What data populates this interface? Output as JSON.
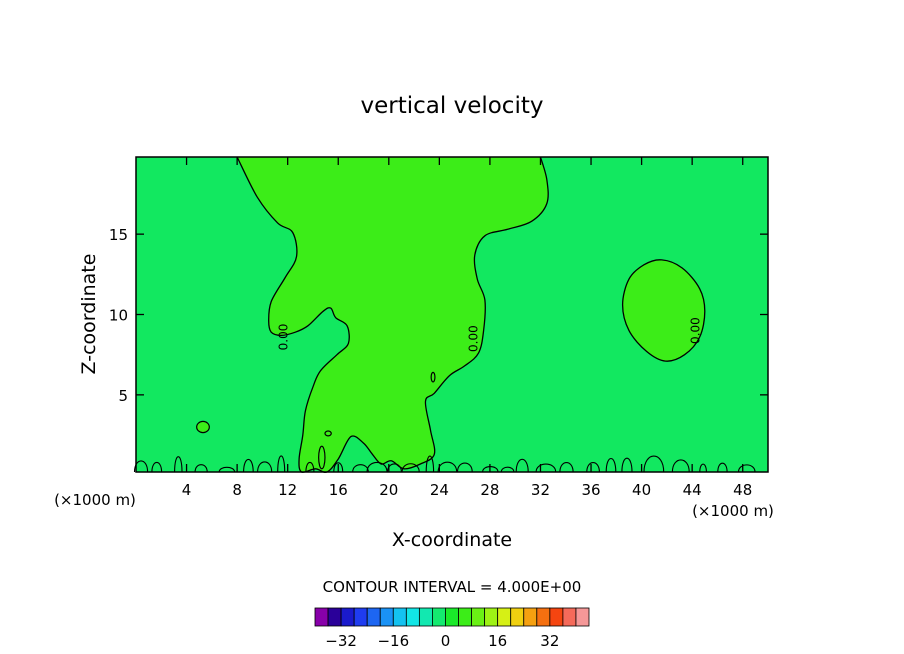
{
  "chart_data": {
    "type": "contour",
    "title": "vertical velocity",
    "xlabel": "X-coordinate",
    "ylabel": "Z-coordinate",
    "x_unit_left": "(×1000 m)",
    "x_unit_right": "(×1000 m)",
    "xlim": [
      0,
      50
    ],
    "ylim": [
      0.2,
      19.8
    ],
    "x_ticks": [
      4,
      8,
      12,
      16,
      20,
      24,
      28,
      32,
      36,
      40,
      44,
      48
    ],
    "y_ticks": [
      5,
      10,
      15
    ],
    "contour_interval_label": "CONTOUR INTERVAL = 4.000E+00",
    "contour_interval": 4.0,
    "contour_labels": [
      {
        "text": "0.00",
        "x": 12.0,
        "z": 8.6
      },
      {
        "text": "0.00",
        "x": 27.0,
        "z": 8.5
      },
      {
        "text": "0.00",
        "x": 44.6,
        "z": 9.0
      }
    ],
    "colorbar": {
      "colors": [
        "#8800aa",
        "#2a0099",
        "#1a1acc",
        "#1f3cf0",
        "#1d66f2",
        "#1a92f5",
        "#14c2f0",
        "#12e6e6",
        "#12e8b0",
        "#14ea70",
        "#1aea2a",
        "#3ced18",
        "#6af015",
        "#9ef215",
        "#d6f015",
        "#f0d010",
        "#f5a010",
        "#f57010",
        "#f54510",
        "#f56a5a",
        "#f59898"
      ],
      "tick_labels": [
        "-32",
        "-16",
        "0",
        "16",
        "32"
      ],
      "tick_values": [
        -32,
        -16,
        0,
        16,
        32
      ],
      "range": [
        -40,
        44
      ]
    },
    "field_colors": {
      "background": "#12e860",
      "updraft_region": "#3ced18"
    },
    "regions": {
      "updraft_column": [
        [
          8.0,
          19.8
        ],
        [
          9.6,
          17.3
        ],
        [
          11.2,
          15.7
        ],
        [
          12.4,
          15.1
        ],
        [
          12.7,
          13.6
        ],
        [
          11.8,
          12.3
        ],
        [
          10.7,
          10.8
        ],
        [
          10.5,
          9.6
        ],
        [
          10.7,
          8.9
        ],
        [
          11.5,
          8.7
        ],
        [
          12.6,
          8.9
        ],
        [
          13.6,
          9.3
        ],
        [
          14.8,
          10.2
        ],
        [
          15.4,
          10.4
        ],
        [
          15.8,
          9.8
        ],
        [
          16.7,
          9.3
        ],
        [
          16.8,
          8.2
        ],
        [
          15.9,
          7.5
        ],
        [
          14.6,
          6.5
        ],
        [
          14.0,
          5.5
        ],
        [
          13.4,
          4.0
        ],
        [
          13.2,
          2.5
        ],
        [
          12.9,
          1.0
        ],
        [
          13.1,
          0.2
        ],
        [
          14.2,
          0.4
        ],
        [
          15.1,
          0.2
        ],
        [
          16.0,
          1.0
        ],
        [
          17.0,
          2.4
        ],
        [
          18.0,
          2.0
        ],
        [
          18.7,
          1.3
        ],
        [
          19.4,
          0.7
        ],
        [
          20.2,
          0.9
        ],
        [
          21.2,
          0.4
        ],
        [
          22.5,
          0.7
        ],
        [
          23.6,
          1.3
        ],
        [
          23.3,
          2.8
        ],
        [
          22.9,
          4.6
        ],
        [
          23.6,
          5.1
        ],
        [
          24.8,
          6.2
        ],
        [
          26.0,
          6.8
        ],
        [
          27.1,
          7.6
        ],
        [
          27.5,
          9.0
        ],
        [
          27.6,
          10.9
        ],
        [
          27.0,
          12.2
        ],
        [
          26.8,
          13.7
        ],
        [
          27.6,
          14.9
        ],
        [
          29.4,
          15.3
        ],
        [
          31.3,
          15.8
        ],
        [
          32.5,
          16.9
        ],
        [
          32.5,
          18.4
        ],
        [
          32.0,
          19.8
        ]
      ],
      "right_cell": [
        [
          41.6,
          13.4
        ],
        [
          43.2,
          12.9
        ],
        [
          44.6,
          11.6
        ],
        [
          45.0,
          10.2
        ],
        [
          44.6,
          8.6
        ],
        [
          43.4,
          7.5
        ],
        [
          41.9,
          7.1
        ],
        [
          40.4,
          7.7
        ],
        [
          39.0,
          9.0
        ],
        [
          38.5,
          10.6
        ],
        [
          39.0,
          12.2
        ],
        [
          40.2,
          13.1
        ]
      ],
      "small_cells": [
        {
          "x": 5.3,
          "z": 3.0,
          "rx": 0.5,
          "ry": 0.35
        },
        {
          "x": 14.7,
          "z": 1.1,
          "rx": 0.25,
          "ry": 0.7
        },
        {
          "x": 15.2,
          "z": 2.6,
          "rx": 0.25,
          "ry": 0.15
        },
        {
          "x": 23.5,
          "z": 6.1,
          "rx": 0.15,
          "ry": 0.3
        }
      ]
    }
  }
}
